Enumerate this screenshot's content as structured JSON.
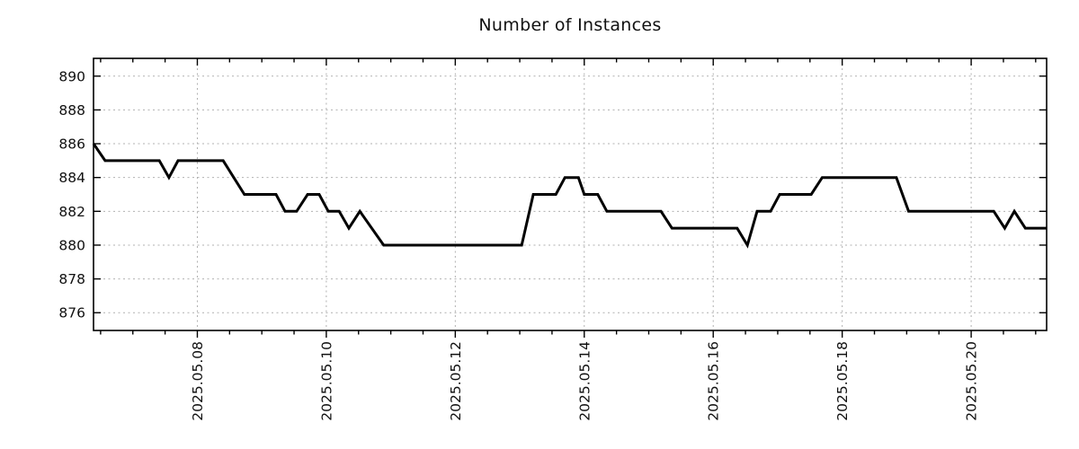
{
  "chart_data": {
    "type": "line",
    "title": "Number of Instances",
    "xlabel": "",
    "ylabel": "",
    "x_unit": "date, decimal day of May 2025",
    "xlim": [
      6.39,
      21.17
    ],
    "ylim": [
      874.95,
      891.05
    ],
    "y_ticks": [
      876,
      878,
      880,
      882,
      884,
      886,
      888,
      890
    ],
    "x_major_ticks": [
      {
        "day": 8,
        "label": "2025.05.08"
      },
      {
        "day": 10,
        "label": "2025.05.10"
      },
      {
        "day": 12,
        "label": "2025.05.12"
      },
      {
        "day": 14,
        "label": "2025.05.14"
      },
      {
        "day": 16,
        "label": "2025.05.16"
      },
      {
        "day": 18,
        "label": "2025.05.18"
      },
      {
        "day": 20,
        "label": "2025.05.20"
      }
    ],
    "x_minor_tick_step_days": 0.5,
    "grid": "dotted lines at major x and y ticks",
    "legend": "none",
    "series": [
      {
        "name": "Number of Instances",
        "color": "#000000",
        "line_width": 3,
        "points": [
          [
            6.39,
            886
          ],
          [
            6.57,
            885
          ],
          [
            7.41,
            885
          ],
          [
            7.56,
            884
          ],
          [
            7.7,
            885
          ],
          [
            8.4,
            885
          ],
          [
            8.73,
            883
          ],
          [
            9.22,
            883
          ],
          [
            9.36,
            882
          ],
          [
            9.54,
            882
          ],
          [
            9.71,
            883
          ],
          [
            9.89,
            883
          ],
          [
            10.03,
            882
          ],
          [
            10.2,
            882
          ],
          [
            10.35,
            881
          ],
          [
            10.52,
            882
          ],
          [
            10.89,
            880
          ],
          [
            13.03,
            880
          ],
          [
            13.21,
            883
          ],
          [
            13.56,
            883
          ],
          [
            13.7,
            884
          ],
          [
            13.91,
            884
          ],
          [
            14.0,
            883
          ],
          [
            14.21,
            883
          ],
          [
            14.35,
            882
          ],
          [
            15.19,
            882
          ],
          [
            15.36,
            881
          ],
          [
            16.37,
            881
          ],
          [
            16.53,
            880
          ],
          [
            16.68,
            882
          ],
          [
            16.89,
            882
          ],
          [
            17.03,
            883
          ],
          [
            17.52,
            883
          ],
          [
            17.69,
            884
          ],
          [
            18.84,
            884
          ],
          [
            19.03,
            882
          ],
          [
            20.35,
            882
          ],
          [
            20.52,
            881
          ],
          [
            20.67,
            882
          ],
          [
            20.84,
            881
          ],
          [
            21.17,
            881
          ]
        ]
      }
    ]
  },
  "colors": {
    "line": "#000000",
    "grid": "#b0b0b0",
    "border": "#000000",
    "text": "#111111",
    "background": "#ffffff"
  }
}
